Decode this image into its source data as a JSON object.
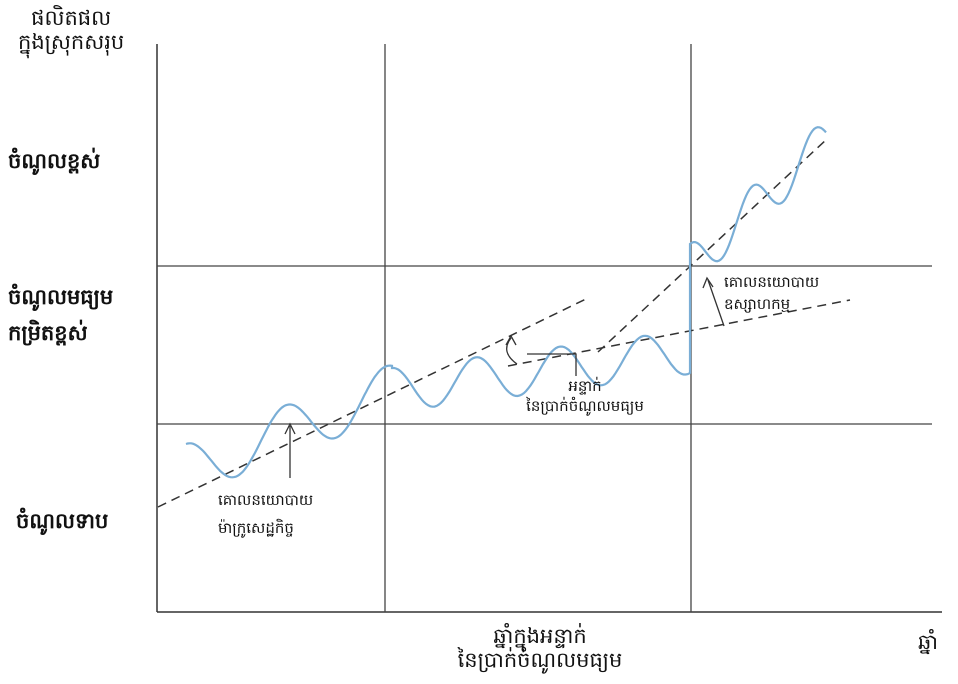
{
  "y_axis_title": [
    "ផលិតផល",
    "ក្នុងស្រុកសរុប"
  ],
  "x_axis_title": "ឆ្នាំ",
  "x_marker_label": [
    "ឆ្នាំក្នុងអន្ទាក់",
    "នៃប្រាក់ចំណូលមធ្យម"
  ],
  "y_levels": {
    "high": "ចំណូលខ្ពស់",
    "upper_middle": [
      "ចំណូលមធ្យម",
      "កម្រិតខ្ពស់"
    ],
    "low": "ចំណូលទាប"
  },
  "annotations": {
    "macro_policy": [
      "គោលនយោបាយ",
      "ម៉ាក្រូសេដ្ឋកិច្ច"
    ],
    "middle_income_trap": [
      "អន្ទាក់",
      "នៃប្រាក់ចំណូលមធ្យម"
    ],
    "industrial_policy": [
      "គោលនយោបាយ",
      "ឧស្សាហកម្ម"
    ]
  },
  "colors": {
    "curve": "#7aaed6",
    "lines": "#333333",
    "dashed": "#333333"
  }
}
